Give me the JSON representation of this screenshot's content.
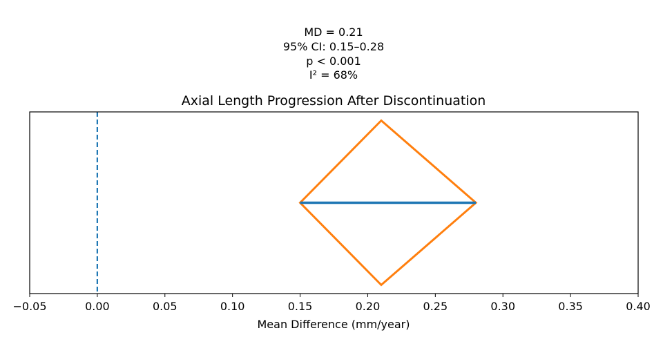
{
  "chart_data": {
    "type": "forest",
    "title": "Axial Length Progression After Discontinuation",
    "xlabel": "Mean Difference (mm/year)",
    "ylabel": "",
    "xlim": [
      -0.05,
      0.4
    ],
    "x_ticks": [
      -0.05,
      0.0,
      0.05,
      0.1,
      0.15,
      0.2,
      0.25,
      0.3,
      0.35,
      0.4
    ],
    "x_tick_labels": [
      "−0.05",
      "0.00",
      "0.05",
      "0.10",
      "0.15",
      "0.20",
      "0.25",
      "0.30",
      "0.35",
      "0.40"
    ],
    "y_ticks_visible": false,
    "grid": false,
    "reference_line": {
      "x": 0.0,
      "style": "dashed",
      "color": "#1f77b4"
    },
    "pooled_estimate": {
      "md": 0.21,
      "ci_low": 0.15,
      "ci_high": 0.28,
      "ci_line_color": "#1f77b4",
      "diamond_color": "#ff7f0e"
    },
    "annotation": [
      "MD = 0.21",
      "95% CI: 0.15–0.28",
      "p < 0.001",
      "I² = 68%"
    ]
  }
}
